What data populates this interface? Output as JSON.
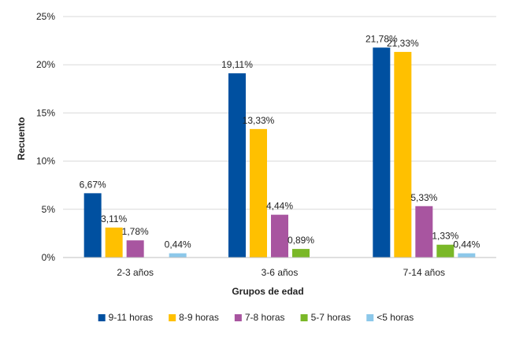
{
  "chart_data": {
    "type": "bar",
    "title": "",
    "xlabel": "Grupos de edad",
    "ylabel": "Recuento",
    "categories": [
      "2-3 años",
      "3-6 años",
      "7-14 años"
    ],
    "ylim": [
      0,
      25
    ],
    "yticks": [
      0,
      5,
      10,
      15,
      20,
      25
    ],
    "ytick_labels": [
      "0%",
      "5%",
      "10%",
      "15%",
      "20%",
      "25%"
    ],
    "grid": true,
    "legend_position": "bottom",
    "series": [
      {
        "name": "9-11 horas",
        "color": "#0050A0",
        "values": [
          6.67,
          19.11,
          21.78
        ],
        "labels": [
          "6,67%",
          "19,11%",
          "21,78%"
        ]
      },
      {
        "name": "8-9 horas",
        "color": "#FFC000",
        "values": [
          3.11,
          13.33,
          21.33
        ],
        "labels": [
          "3,11%",
          "13,33%",
          "21,33%"
        ]
      },
      {
        "name": "7-8 horas",
        "color": "#A855A0",
        "values": [
          1.78,
          4.44,
          5.33
        ],
        "labels": [
          "1,78%",
          "4,44%",
          "5,33%"
        ]
      },
      {
        "name": "5-7 horas",
        "color": "#7AB828",
        "values": [
          null,
          0.89,
          1.33
        ],
        "labels": [
          null,
          "0,89%",
          "1,33%"
        ]
      },
      {
        "name": "<5 horas",
        "color": "#8CC8EA",
        "values": [
          0.44,
          null,
          0.44
        ],
        "labels": [
          "0,44%",
          null,
          "0,44%"
        ]
      }
    ]
  }
}
